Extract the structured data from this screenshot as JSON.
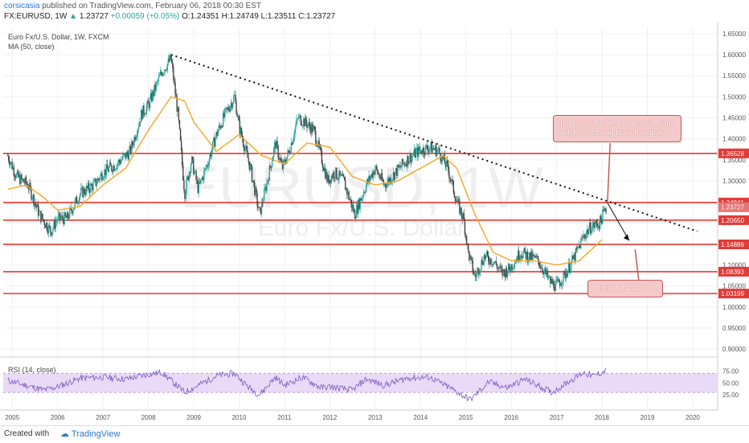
{
  "header": {
    "user": "corsicasia",
    "published": "published on TradingView.com, February 06, 2018 00:30 EST",
    "symbol": "FX:EURUSD, 1W",
    "last": "1.23727",
    "change": "+0.00059 (+0.05%)",
    "ohlc": "O:1.24351 H:1.24749 L:1.23511 C:1.23727"
  },
  "legend": {
    "title": "Euro Fx/U.S. Dollar, 1W, FXCM",
    "ma": "MA (50, close)",
    "rsi": "RSI (14, close)"
  },
  "watermark": {
    "symbol": "EURUSD, 1W",
    "name": "Euro Fx/U.S. Dollar"
  },
  "annotations": {
    "trendline_note": "If a day it broke this down T line will be a strong bullish signal",
    "target_note": "next for 2018 ?"
  },
  "footer": {
    "created": "Created with",
    "brand": "TradingView"
  },
  "colors": {
    "candle_up": "#26a69a",
    "candle_down": "#444444",
    "ma": "#f5a623",
    "level": "#e53935",
    "rsi_line": "#7e57c2",
    "rsi_band": "#e9dbf7",
    "callout_bg": "#f4c9c9"
  },
  "chart_data": {
    "type": "line",
    "x_label_years": [
      "2005",
      "2006",
      "2007",
      "2008",
      "2009",
      "2010",
      "2011",
      "2012",
      "2013",
      "2014",
      "2015",
      "2016",
      "2017",
      "2018",
      "2019",
      "2020"
    ],
    "y_ticks": [
      1.65,
      1.6,
      1.55,
      1.5,
      1.45,
      1.4,
      1.35,
      1.3,
      1.25,
      1.2,
      1.15,
      1.1,
      1.05,
      1.0,
      0.95,
      0.9
    ],
    "ylim": [
      0.885,
      1.665
    ],
    "horizontal_levels": [
      1.36528,
      1.24841,
      1.2065,
      1.14886,
      1.08393,
      1.03199
    ],
    "current_price": 1.23727,
    "trendline": {
      "from": {
        "date": 2008.5,
        "price": 1.6
      },
      "to": {
        "date": 2020.1,
        "price": 1.18
      }
    },
    "series": [
      {
        "name": "Close (approx, weekly-derived)",
        "points": [
          [
            2004.9,
            1.36
          ],
          [
            2005.1,
            1.31
          ],
          [
            2005.35,
            1.29
          ],
          [
            2005.6,
            1.22
          ],
          [
            2005.85,
            1.18
          ],
          [
            2006.0,
            1.21
          ],
          [
            2006.2,
            1.21
          ],
          [
            2006.5,
            1.27
          ],
          [
            2006.8,
            1.29
          ],
          [
            2007.0,
            1.32
          ],
          [
            2007.3,
            1.34
          ],
          [
            2007.6,
            1.37
          ],
          [
            2007.85,
            1.46
          ],
          [
            2008.0,
            1.48
          ],
          [
            2008.3,
            1.56
          ],
          [
            2008.5,
            1.59
          ],
          [
            2008.65,
            1.46
          ],
          [
            2008.8,
            1.27
          ],
          [
            2008.95,
            1.35
          ],
          [
            2009.1,
            1.28
          ],
          [
            2009.3,
            1.34
          ],
          [
            2009.5,
            1.41
          ],
          [
            2009.7,
            1.46
          ],
          [
            2009.9,
            1.5
          ],
          [
            2010.0,
            1.43
          ],
          [
            2010.25,
            1.33
          ],
          [
            2010.45,
            1.22
          ],
          [
            2010.6,
            1.29
          ],
          [
            2010.8,
            1.39
          ],
          [
            2010.95,
            1.33
          ],
          [
            2011.1,
            1.37
          ],
          [
            2011.3,
            1.45
          ],
          [
            2011.45,
            1.44
          ],
          [
            2011.65,
            1.42
          ],
          [
            2011.8,
            1.36
          ],
          [
            2011.95,
            1.3
          ],
          [
            2012.1,
            1.32
          ],
          [
            2012.3,
            1.3
          ],
          [
            2012.55,
            1.22
          ],
          [
            2012.8,
            1.29
          ],
          [
            2013.0,
            1.33
          ],
          [
            2013.2,
            1.29
          ],
          [
            2013.45,
            1.32
          ],
          [
            2013.7,
            1.35
          ],
          [
            2013.95,
            1.37
          ],
          [
            2014.2,
            1.38
          ],
          [
            2014.4,
            1.37
          ],
          [
            2014.6,
            1.33
          ],
          [
            2014.8,
            1.25
          ],
          [
            2014.95,
            1.21
          ],
          [
            2015.05,
            1.13
          ],
          [
            2015.2,
            1.07
          ],
          [
            2015.4,
            1.12
          ],
          [
            2015.6,
            1.11
          ],
          [
            2015.8,
            1.08
          ],
          [
            2015.95,
            1.09
          ],
          [
            2016.2,
            1.13
          ],
          [
            2016.4,
            1.12
          ],
          [
            2016.6,
            1.11
          ],
          [
            2016.85,
            1.06
          ],
          [
            2017.0,
            1.05
          ],
          [
            2017.2,
            1.08
          ],
          [
            2017.4,
            1.12
          ],
          [
            2017.6,
            1.17
          ],
          [
            2017.75,
            1.19
          ],
          [
            2017.95,
            1.2
          ],
          [
            2018.1,
            1.24
          ]
        ]
      },
      {
        "name": "MA 50",
        "points": [
          [
            2004.9,
            1.28
          ],
          [
            2005.3,
            1.29
          ],
          [
            2005.7,
            1.26
          ],
          [
            2006.0,
            1.23
          ],
          [
            2006.5,
            1.24
          ],
          [
            2007.0,
            1.29
          ],
          [
            2007.5,
            1.33
          ],
          [
            2008.0,
            1.42
          ],
          [
            2008.5,
            1.5
          ],
          [
            2008.8,
            1.49
          ],
          [
            2009.0,
            1.44
          ],
          [
            2009.5,
            1.37
          ],
          [
            2010.0,
            1.41
          ],
          [
            2010.5,
            1.36
          ],
          [
            2011.0,
            1.34
          ],
          [
            2011.5,
            1.39
          ],
          [
            2012.0,
            1.38
          ],
          [
            2012.5,
            1.31
          ],
          [
            2013.0,
            1.29
          ],
          [
            2013.5,
            1.3
          ],
          [
            2014.0,
            1.33
          ],
          [
            2014.5,
            1.36
          ],
          [
            2014.8,
            1.33
          ],
          [
            2015.2,
            1.22
          ],
          [
            2015.6,
            1.13
          ],
          [
            2016.0,
            1.11
          ],
          [
            2016.5,
            1.11
          ],
          [
            2017.0,
            1.1
          ],
          [
            2017.5,
            1.11
          ],
          [
            2018.0,
            1.16
          ]
        ]
      },
      {
        "name": "RSI 14",
        "points": [
          [
            2004.9,
            55
          ],
          [
            2005.3,
            45
          ],
          [
            2005.7,
            35
          ],
          [
            2006.0,
            42
          ],
          [
            2006.5,
            60
          ],
          [
            2007.0,
            62
          ],
          [
            2007.5,
            58
          ],
          [
            2008.0,
            68
          ],
          [
            2008.3,
            72
          ],
          [
            2008.8,
            30
          ],
          [
            2009.0,
            40
          ],
          [
            2009.5,
            65
          ],
          [
            2009.9,
            70
          ],
          [
            2010.2,
            42
          ],
          [
            2010.45,
            25
          ],
          [
            2010.8,
            62
          ],
          [
            2011.0,
            45
          ],
          [
            2011.4,
            62
          ],
          [
            2011.8,
            40
          ],
          [
            2012.0,
            42
          ],
          [
            2012.5,
            35
          ],
          [
            2012.8,
            58
          ],
          [
            2013.2,
            45
          ],
          [
            2013.7,
            60
          ],
          [
            2014.2,
            62
          ],
          [
            2014.6,
            42
          ],
          [
            2015.0,
            20
          ],
          [
            2015.1,
            15
          ],
          [
            2015.5,
            52
          ],
          [
            2015.9,
            40
          ],
          [
            2016.3,
            58
          ],
          [
            2016.9,
            30
          ],
          [
            2017.3,
            55
          ],
          [
            2017.6,
            72
          ],
          [
            2017.8,
            64
          ],
          [
            2018.1,
            76
          ]
        ]
      }
    ],
    "rsi_ticks": [
      75,
      50,
      25
    ]
  }
}
